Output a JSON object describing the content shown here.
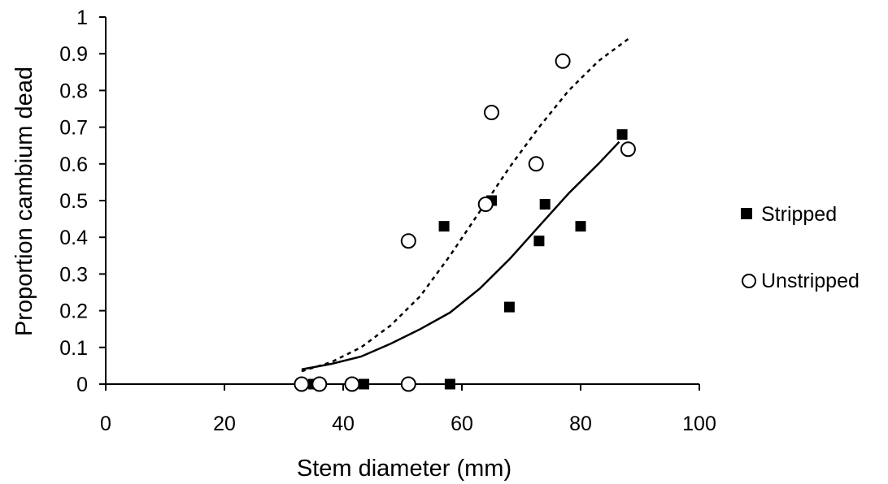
{
  "chart_data": {
    "type": "scatter",
    "title": "",
    "xlabel": "Stem diameter (mm)",
    "ylabel": "Proportion cambium dead",
    "xlim": [
      0,
      100
    ],
    "ylim": [
      0,
      1
    ],
    "x_ticks": [
      0,
      20,
      40,
      60,
      80,
      100
    ],
    "y_ticks": [
      0,
      0.1,
      0.2,
      0.3,
      0.4,
      0.5,
      0.6,
      0.7,
      0.8,
      0.9,
      1
    ],
    "x_tick_labels": [
      "0",
      "20",
      "40",
      "60",
      "80",
      "100"
    ],
    "y_tick_labels": [
      "0",
      "0.1",
      "0.2",
      "0.3",
      "0.4",
      "0.5",
      "0.6",
      "0.7",
      "0.8",
      "0.9",
      "1"
    ],
    "grid": false,
    "legend_position": "right",
    "series": [
      {
        "name": "Stripped",
        "marker": "filled-square",
        "color": "#000000",
        "points": [
          {
            "x": 35,
            "y": 0
          },
          {
            "x": 43.5,
            "y": 0
          },
          {
            "x": 58,
            "y": 0
          },
          {
            "x": 57,
            "y": 0.43
          },
          {
            "x": 65,
            "y": 0.5
          },
          {
            "x": 68,
            "y": 0.21
          },
          {
            "x": 73,
            "y": 0.39
          },
          {
            "x": 74,
            "y": 0.49
          },
          {
            "x": 80,
            "y": 0.43
          },
          {
            "x": 87,
            "y": 0.68
          }
        ],
        "fit_line": {
          "style": "solid",
          "points": [
            {
              "x": 33,
              "y": 0.04
            },
            {
              "x": 38,
              "y": 0.055
            },
            {
              "x": 43,
              "y": 0.075
            },
            {
              "x": 48,
              "y": 0.11
            },
            {
              "x": 53,
              "y": 0.15
            },
            {
              "x": 58,
              "y": 0.195
            },
            {
              "x": 63,
              "y": 0.26
            },
            {
              "x": 68,
              "y": 0.34
            },
            {
              "x": 73,
              "y": 0.43
            },
            {
              "x": 78,
              "y": 0.52
            },
            {
              "x": 83,
              "y": 0.6
            },
            {
              "x": 86.5,
              "y": 0.66
            }
          ]
        }
      },
      {
        "name": "Unstripped",
        "marker": "open-circle",
        "color": "#000000",
        "points": [
          {
            "x": 33,
            "y": 0
          },
          {
            "x": 36,
            "y": 0
          },
          {
            "x": 41.5,
            "y": 0
          },
          {
            "x": 51,
            "y": 0
          },
          {
            "x": 51,
            "y": 0.39
          },
          {
            "x": 64,
            "y": 0.49
          },
          {
            "x": 65,
            "y": 0.74
          },
          {
            "x": 72.5,
            "y": 0.6
          },
          {
            "x": 77,
            "y": 0.88
          },
          {
            "x": 88,
            "y": 0.64
          }
        ],
        "fit_line": {
          "style": "dotted",
          "points": [
            {
              "x": 33,
              "y": 0.035
            },
            {
              "x": 38,
              "y": 0.06
            },
            {
              "x": 43,
              "y": 0.1
            },
            {
              "x": 48,
              "y": 0.16
            },
            {
              "x": 53,
              "y": 0.24
            },
            {
              "x": 58,
              "y": 0.35
            },
            {
              "x": 63,
              "y": 0.47
            },
            {
              "x": 68,
              "y": 0.59
            },
            {
              "x": 73,
              "y": 0.7
            },
            {
              "x": 78,
              "y": 0.8
            },
            {
              "x": 83,
              "y": 0.88
            },
            {
              "x": 88,
              "y": 0.94
            }
          ]
        }
      }
    ]
  }
}
